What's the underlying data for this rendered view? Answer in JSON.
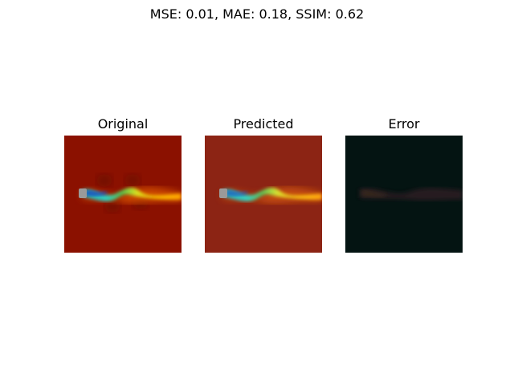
{
  "figure": {
    "suptitle": "MSE: 0.01, MAE: 0.18, SSIM: 0.62"
  },
  "panels": [
    {
      "title": "Original",
      "background": "#8b1100"
    },
    {
      "title": "Predicted",
      "background": "#8c2414"
    },
    {
      "title": "Error",
      "background": "#041412"
    }
  ]
}
